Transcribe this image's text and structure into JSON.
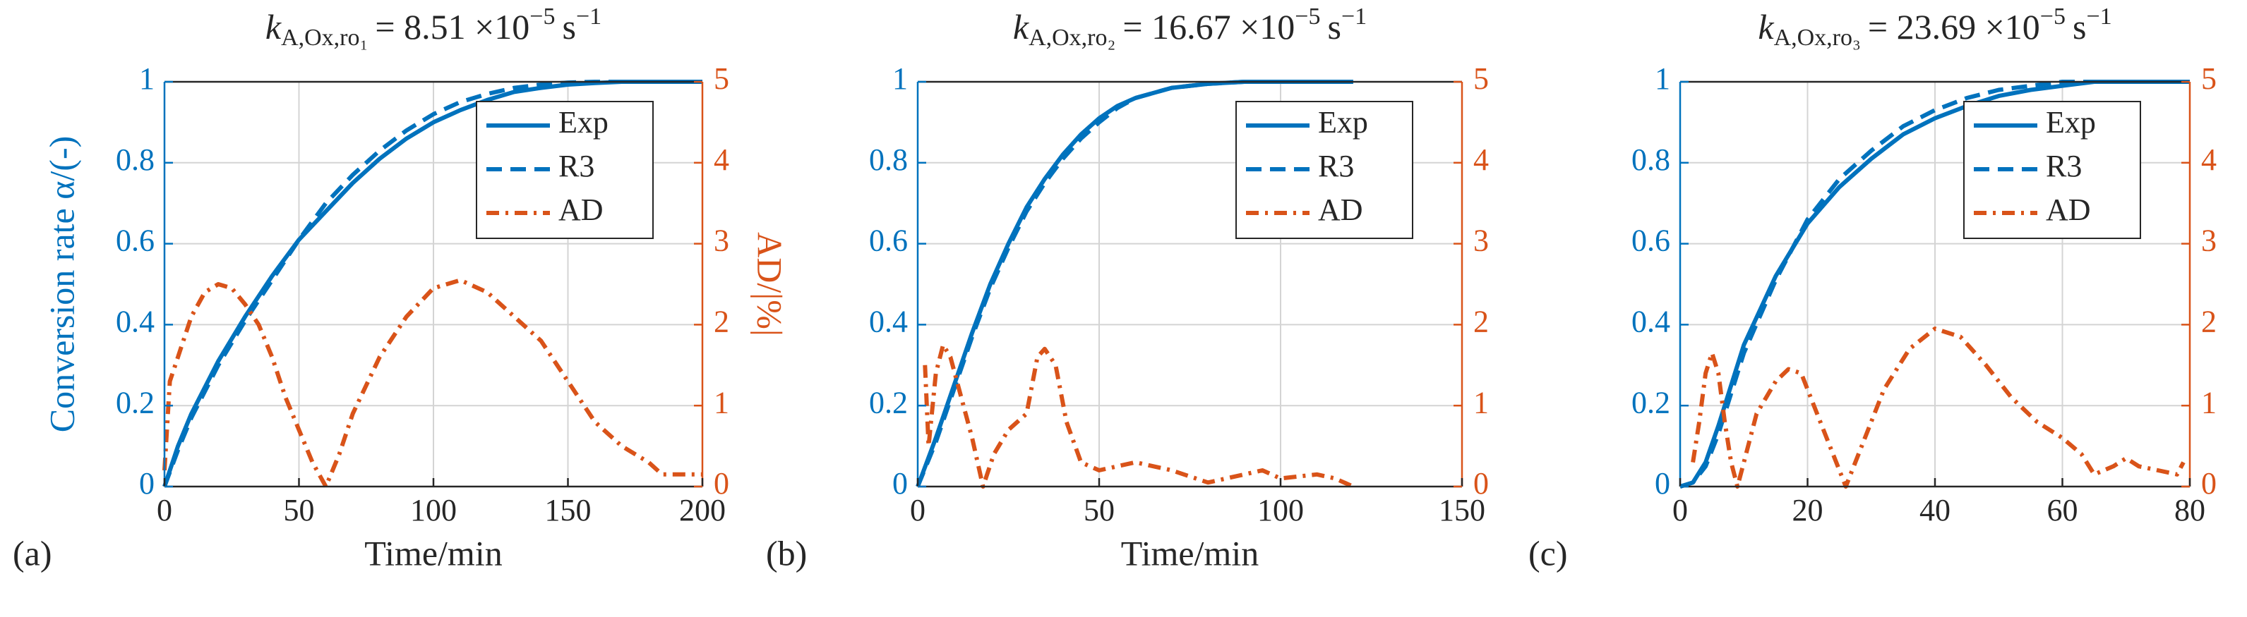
{
  "chart_data": [
    {
      "type": "line",
      "panel": "(a)",
      "title": {
        "symbol": "k",
        "subscript": "A,Ox,ro₁",
        "coefficient": "= 8.51 ×10",
        "exponent": "−5",
        "unit": "s",
        "unit_exponent": "−1"
      },
      "xlabel": "Time/min",
      "ylabel": "Conversion rate α/(-)",
      "y2label": "AD/|%|",
      "xlim": [
        0,
        200
      ],
      "xticks": [
        0,
        50,
        100,
        150,
        200
      ],
      "ylim": [
        0,
        1
      ],
      "yticks": [
        0,
        0.2,
        0.4,
        0.6,
        0.8,
        1
      ],
      "y2lim": [
        0,
        5
      ],
      "y2ticks": [
        0,
        1,
        2,
        3,
        4,
        5
      ],
      "grid": true,
      "legend": "upper right",
      "series": [
        {
          "name": "Exp",
          "color": "#0072BD",
          "linestyle": "solid",
          "x": [
            0,
            5,
            10,
            20,
            30,
            40,
            50,
            60,
            70,
            80,
            90,
            100,
            110,
            120,
            130,
            140,
            150,
            160,
            170,
            180,
            190,
            200
          ],
          "values": [
            0,
            0.1,
            0.18,
            0.31,
            0.42,
            0.52,
            0.61,
            0.68,
            0.75,
            0.81,
            0.86,
            0.9,
            0.93,
            0.955,
            0.975,
            0.985,
            0.993,
            0.997,
            1,
            1,
            1,
            1
          ]
        },
        {
          "name": "R3",
          "color": "#0072BD",
          "linestyle": "dashed",
          "x": [
            0,
            5,
            10,
            20,
            30,
            40,
            50,
            60,
            70,
            80,
            90,
            100,
            110,
            120,
            130,
            140,
            150,
            160,
            170,
            180,
            190,
            200
          ],
          "values": [
            0,
            0.09,
            0.17,
            0.3,
            0.41,
            0.51,
            0.61,
            0.7,
            0.77,
            0.83,
            0.88,
            0.92,
            0.95,
            0.97,
            0.985,
            0.993,
            0.998,
            1,
            1,
            1,
            1,
            1
          ]
        },
        {
          "name": "AD",
          "color": "#D95319",
          "linestyle": "dashdot",
          "axis": "y2",
          "x": [
            0,
            2,
            5,
            10,
            15,
            20,
            25,
            30,
            35,
            40,
            45,
            50,
            55,
            60,
            65,
            70,
            80,
            90,
            100,
            110,
            120,
            130,
            140,
            150,
            160,
            170,
            180,
            185,
            190,
            200
          ],
          "values": [
            0.2,
            1.3,
            1.6,
            2.1,
            2.4,
            2.5,
            2.45,
            2.25,
            2.0,
            1.6,
            1.1,
            0.7,
            0.3,
            0,
            0.4,
            0.9,
            1.6,
            2.1,
            2.45,
            2.55,
            2.4,
            2.1,
            1.8,
            1.3,
            0.8,
            0.5,
            0.3,
            0.15,
            0.15,
            0.15
          ]
        }
      ]
    },
    {
      "type": "line",
      "panel": "(b)",
      "title": {
        "symbol": "k",
        "subscript": "A,Ox,ro₂",
        "coefficient": "= 16.67 ×10",
        "exponent": "−5",
        "unit": "s",
        "unit_exponent": "−1"
      },
      "xlabel": "Time/min",
      "xlim": [
        0,
        150
      ],
      "xticks": [
        0,
        50,
        100,
        150
      ],
      "ylim": [
        0,
        1
      ],
      "yticks": [
        0,
        0.2,
        0.4,
        0.6,
        0.8,
        1
      ],
      "y2lim": [
        0,
        5
      ],
      "y2ticks": [
        0,
        1,
        2,
        3,
        4,
        5
      ],
      "grid": true,
      "legend": "upper right",
      "series": [
        {
          "name": "Exp",
          "color": "#0072BD",
          "linestyle": "solid",
          "x": [
            0,
            5,
            10,
            15,
            20,
            25,
            30,
            35,
            40,
            45,
            50,
            55,
            60,
            70,
            80,
            90,
            100,
            110,
            120
          ],
          "values": [
            0,
            0.12,
            0.25,
            0.38,
            0.5,
            0.6,
            0.69,
            0.76,
            0.82,
            0.87,
            0.91,
            0.94,
            0.96,
            0.985,
            0.995,
            1,
            1,
            1,
            1
          ]
        },
        {
          "name": "R3",
          "color": "#0072BD",
          "linestyle": "dashed",
          "x": [
            0,
            5,
            10,
            15,
            20,
            25,
            30,
            35,
            40,
            45,
            50,
            55,
            60,
            70,
            80,
            90,
            100,
            110,
            120
          ],
          "values": [
            0,
            0.11,
            0.24,
            0.37,
            0.49,
            0.59,
            0.68,
            0.75,
            0.81,
            0.86,
            0.9,
            0.935,
            0.96,
            0.985,
            0.995,
            1,
            1,
            1,
            1
          ]
        },
        {
          "name": "AD",
          "color": "#D95319",
          "linestyle": "dashdot",
          "axis": "y2",
          "x": [
            2,
            3,
            5,
            7,
            9,
            12,
            15,
            18,
            21,
            25,
            30,
            33,
            35,
            38,
            41,
            45,
            50,
            55,
            60,
            70,
            80,
            90,
            95,
            100,
            110,
            115,
            120
          ],
          "values": [
            1.5,
            0.5,
            1.4,
            1.75,
            1.6,
            1.1,
            0.6,
            0,
            0.4,
            0.7,
            0.9,
            1.6,
            1.7,
            1.5,
            0.8,
            0.3,
            0.2,
            0.25,
            0.3,
            0.2,
            0.05,
            0.15,
            0.2,
            0.1,
            0.15,
            0.1,
            0
          ]
        }
      ]
    },
    {
      "type": "line",
      "panel": "(c)",
      "title": {
        "symbol": "k",
        "subscript": "A,Ox,ro₃",
        "coefficient": "= 23.69 ×10",
        "exponent": "−5",
        "unit": "s",
        "unit_exponent": "−1"
      },
      "xlim": [
        0,
        80
      ],
      "xticks": [
        0,
        20,
        40,
        60,
        80
      ],
      "ylim": [
        0,
        1
      ],
      "yticks": [
        0,
        0.2,
        0.4,
        0.6,
        0.8,
        1
      ],
      "y2lim": [
        0,
        5
      ],
      "y2ticks": [
        0,
        1,
        2,
        3,
        4,
        5
      ],
      "grid": true,
      "legend": "upper right",
      "series": [
        {
          "name": "Exp",
          "color": "#0072BD",
          "linestyle": "solid",
          "x": [
            0,
            2,
            4,
            6,
            8,
            10,
            15,
            20,
            25,
            30,
            35,
            40,
            45,
            50,
            55,
            60,
            65,
            70,
            80
          ],
          "values": [
            0,
            0.01,
            0.06,
            0.15,
            0.25,
            0.35,
            0.52,
            0.65,
            0.74,
            0.81,
            0.87,
            0.91,
            0.94,
            0.965,
            0.98,
            0.99,
            1,
            1,
            1
          ]
        },
        {
          "name": "R3",
          "color": "#0072BD",
          "linestyle": "dashed",
          "x": [
            0,
            2,
            4,
            6,
            8,
            10,
            15,
            20,
            25,
            30,
            35,
            40,
            45,
            50,
            55,
            60,
            65,
            70,
            80
          ],
          "values": [
            0,
            0.01,
            0.05,
            0.13,
            0.23,
            0.33,
            0.51,
            0.66,
            0.76,
            0.83,
            0.89,
            0.93,
            0.96,
            0.98,
            0.99,
            1,
            1,
            1,
            1
          ]
        },
        {
          "name": "AD",
          "color": "#D95319",
          "linestyle": "dashdot",
          "axis": "y2",
          "x": [
            2,
            3,
            4,
            5,
            6,
            7,
            8,
            9,
            10,
            12,
            15,
            17,
            19,
            21,
            24,
            26,
            28,
            32,
            36,
            40,
            44,
            48,
            52,
            56,
            60,
            63,
            65,
            68,
            70,
            72,
            75,
            78,
            79
          ],
          "values": [
            0.3,
            0.8,
            1.4,
            1.65,
            1.4,
            0.8,
            0.3,
            0,
            0.3,
            0.9,
            1.3,
            1.45,
            1.4,
            1.0,
            0.4,
            0,
            0.4,
            1.2,
            1.7,
            1.95,
            1.85,
            1.5,
            1.1,
            0.8,
            0.6,
            0.4,
            0.15,
            0.25,
            0.35,
            0.25,
            0.2,
            0.15,
            0.3
          ]
        }
      ]
    }
  ]
}
